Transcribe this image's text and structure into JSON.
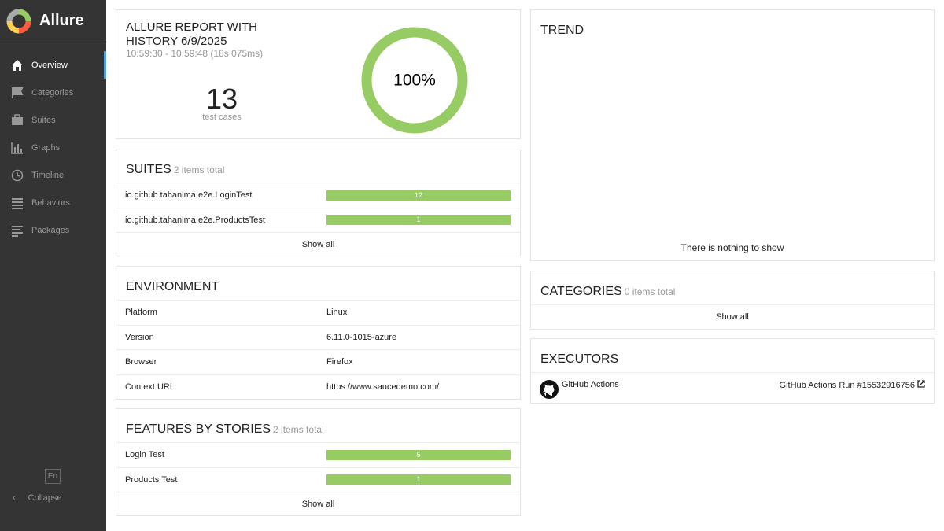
{
  "sidebar": {
    "brand": "Allure",
    "menu": [
      "Overview",
      "Categories",
      "Suites",
      "Graphs",
      "Timeline",
      "Behaviors",
      "Packages"
    ],
    "language": "En",
    "collapse": "Collapse"
  },
  "summary": {
    "title": "ALLURE REPORT WITH HISTORY 6/9/2025",
    "time": "10:59:30 - 10:59:48 (18s 075ms)",
    "test_count": 13,
    "test_label": "test cases",
    "percent": "100%"
  },
  "suites": {
    "title": "SUITES",
    "subtitle": "2 items total",
    "rows": [
      {
        "name": "io.github.tahanima.e2e.LoginTest",
        "count": 12
      },
      {
        "name": "io.github.tahanima.e2e.ProductsTest",
        "count": 1
      }
    ],
    "show_all": "Show all"
  },
  "environment": {
    "title": "ENVIRONMENT",
    "rows": [
      [
        "Platform",
        "Linux"
      ],
      [
        "Version",
        "6.11.0-1015-azure"
      ],
      [
        "Browser",
        "Firefox"
      ],
      [
        "Context URL",
        "https://www.saucedemo.com/"
      ]
    ]
  },
  "features": {
    "title": "FEATURES BY STORIES",
    "subtitle": "2 items total",
    "rows": [
      {
        "name": "Login Test",
        "count": 5
      },
      {
        "name": "Products Test",
        "count": 1
      }
    ],
    "show_all": "Show all"
  },
  "trend": {
    "title": "TREND",
    "empty": "There is nothing to show"
  },
  "categories": {
    "title": "CATEGORIES",
    "subtitle": "0 items total",
    "show_all": "Show all"
  },
  "executors": {
    "title": "EXECUTORS",
    "rows": [
      {
        "name": "GitHub Actions",
        "build": "GitHub Actions Run #15532916756"
      }
    ]
  }
}
